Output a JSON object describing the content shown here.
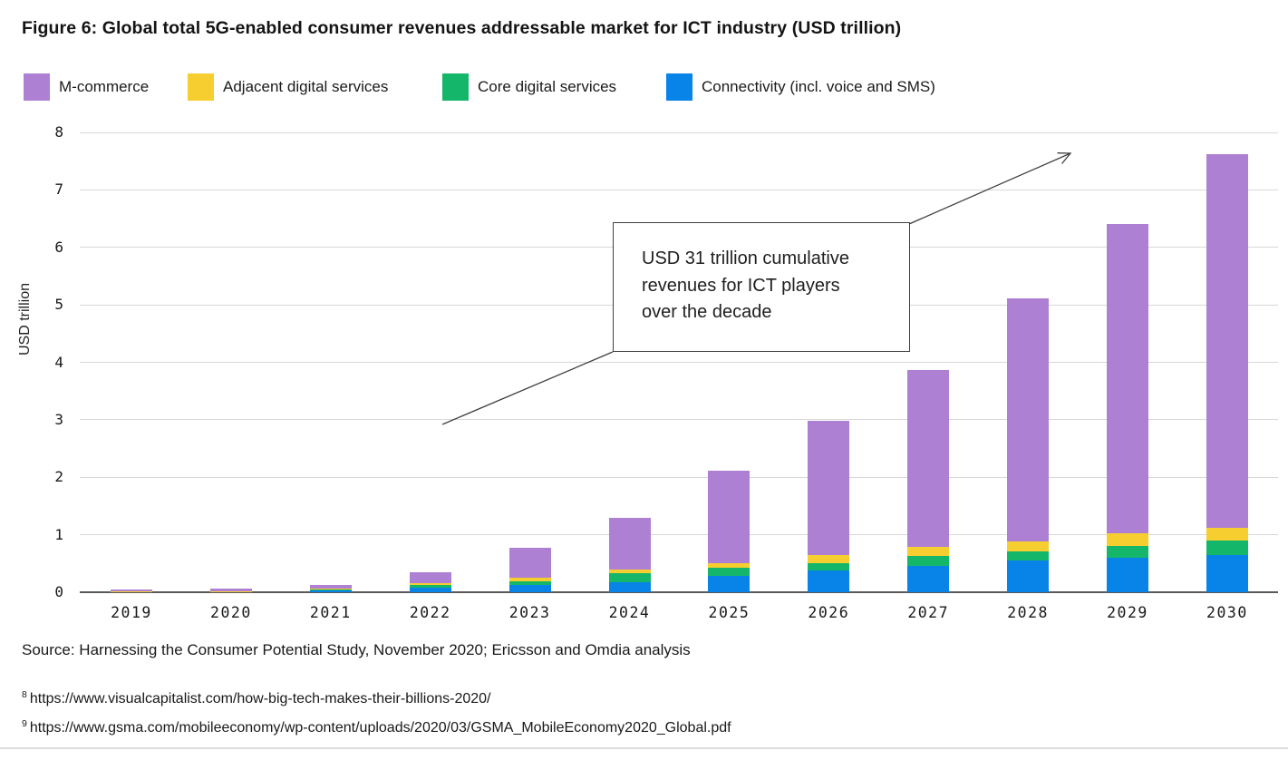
{
  "figure": {
    "title": "Figure 6: Global total 5G-enabled consumer revenues addressable market for ICT industry (USD trillion)",
    "source": "Source: Harnessing the Consumer Potential Study, November 2020; Ericsson and Omdia analysis",
    "footnotes": [
      {
        "marker": "8",
        "text": "https://www.visualcapitalist.com/how-big-tech-makes-their-billions-2020/"
      },
      {
        "marker": "9",
        "text": "https://www.gsma.com/mobileeconomy/wp-content/uploads/2020/03/GSMA_MobileEconomy2020_Global.pdf"
      }
    ]
  },
  "legend": {
    "items": [
      {
        "label": "M-commerce",
        "color": "#AD80D4"
      },
      {
        "label": "Adjacent digital services",
        "color": "#F6CE2F"
      },
      {
        "label": "Core digital services",
        "color": "#14B669"
      },
      {
        "label": "Connectivity (incl. voice and SMS)",
        "color": "#0883E8"
      }
    ]
  },
  "annotation": {
    "lines": [
      "USD 31 trillion cumulative",
      "revenues for ICT players",
      "over the decade"
    ]
  },
  "chart_data": {
    "type": "bar",
    "stacked": true,
    "title": "Global total 5G-enabled consumer revenues addressable market for ICT industry (USD trillion)",
    "xlabel": "",
    "ylabel": "USD trillion",
    "ylim": [
      0,
      8
    ],
    "yticks": [
      0,
      1,
      2,
      3,
      4,
      5,
      6,
      7,
      8
    ],
    "grid": true,
    "legend_position": "top",
    "categories": [
      "2019",
      "2020",
      "2021",
      "2022",
      "2023",
      "2024",
      "2025",
      "2026",
      "2027",
      "2028",
      "2029",
      "2030"
    ],
    "series": [
      {
        "name": "Connectivity (incl. voice and SMS)",
        "color": "#0883E8",
        "values": [
          0.01,
          0.01,
          0.03,
          0.08,
          0.13,
          0.18,
          0.28,
          0.38,
          0.46,
          0.55,
          0.6,
          0.65
        ]
      },
      {
        "name": "Core digital services",
        "color": "#14B669",
        "values": [
          0.005,
          0.005,
          0.02,
          0.04,
          0.06,
          0.15,
          0.14,
          0.13,
          0.17,
          0.16,
          0.2,
          0.25
        ]
      },
      {
        "name": "Adjacent digital services",
        "color": "#F6CE2F",
        "values": [
          0.005,
          0.005,
          0.02,
          0.04,
          0.06,
          0.06,
          0.08,
          0.14,
          0.16,
          0.17,
          0.22,
          0.22
        ]
      },
      {
        "name": "M-commerce",
        "color": "#AD80D4",
        "values": [
          0.03,
          0.04,
          0.06,
          0.19,
          0.52,
          0.9,
          1.61,
          2.34,
          3.07,
          4.24,
          5.39,
          6.5
        ]
      }
    ],
    "totals": [
      0.05,
      0.06,
      0.13,
      0.35,
      0.77,
      1.29,
      2.11,
      2.99,
      3.86,
      5.12,
      6.41,
      7.62
    ],
    "annotation_text": "USD 31 trillion cumulative revenues for ICT players over the decade"
  }
}
